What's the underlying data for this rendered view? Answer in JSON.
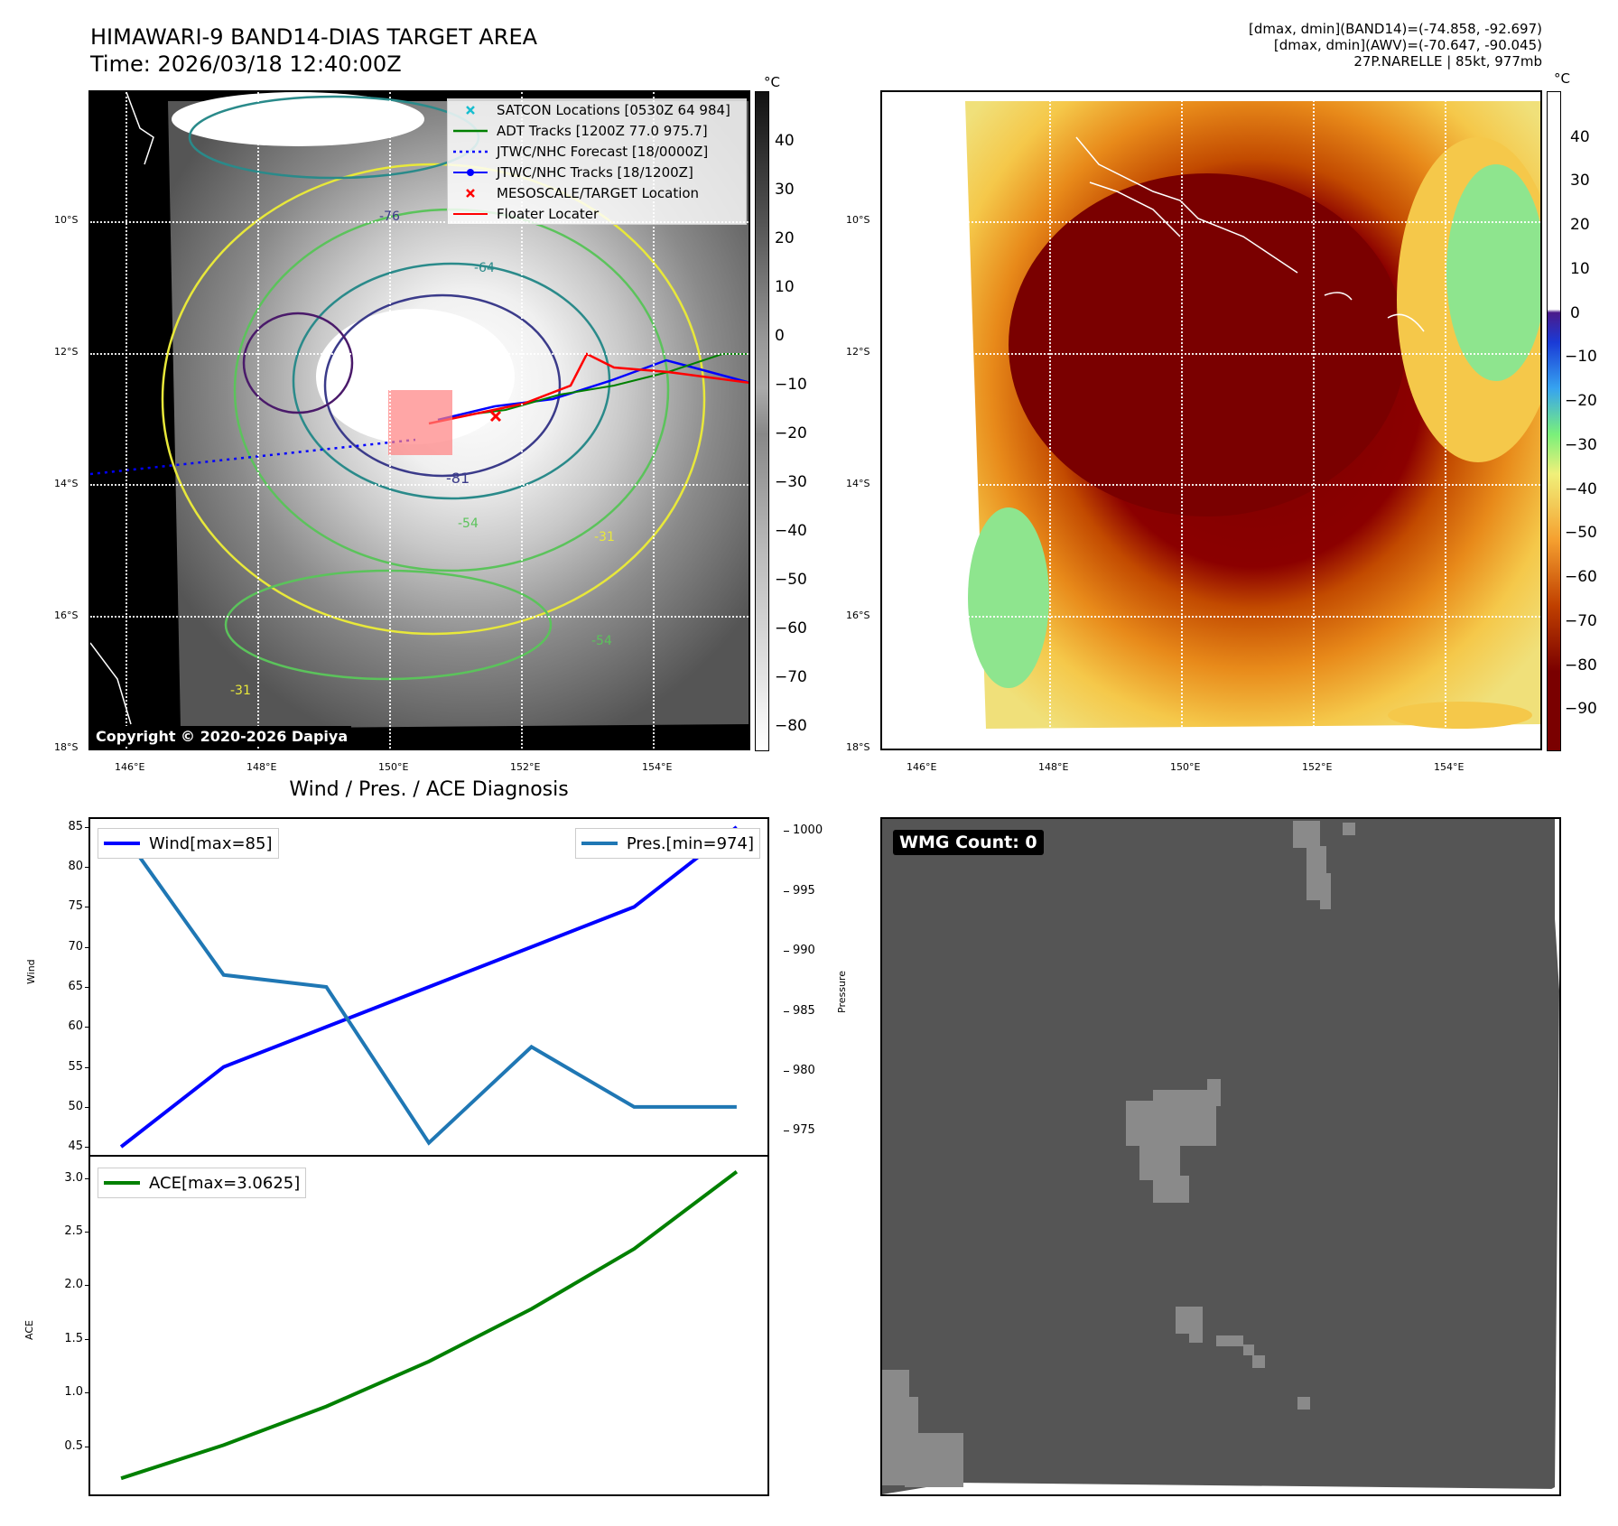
{
  "header": {
    "title_line1": "HIMAWARI-9 BAND14-DIAS TARGET AREA",
    "title_line2": "Time: 2026/03/18 12:40:00Z",
    "info_line1": "[dmax, dmin](BAND14)=(-74.858, -92.697)",
    "info_line2": "[dmax, dmin](AWV)=(-70.647, -90.045)",
    "info_line3": "27P.NARELLE | 85kt, 977mb"
  },
  "map": {
    "lon_labels": [
      "146°E",
      "148°E",
      "150°E",
      "152°E",
      "154°E"
    ],
    "lat_labels": [
      "10°S",
      "12°S",
      "14°S",
      "16°S",
      "18°S"
    ],
    "copyright": "Copyright © 2020-2026 Dapiya",
    "contour_labels": [
      "-81",
      "-64",
      "-54",
      "-31",
      "-76",
      "-54",
      "-31"
    ],
    "legend": [
      {
        "label": "SATCON Locations [0530Z 64 984]",
        "color": "#17becf",
        "icon": "x-marker"
      },
      {
        "label": "ADT Tracks [1200Z 77.0 975.7]",
        "color": "#008000",
        "icon": "solid-line"
      },
      {
        "label": "JTWC/NHC Forecast [18/0000Z]",
        "color": "#0000ff",
        "icon": "dotted-line"
      },
      {
        "label": "JTWC/NHC Tracks [18/1200Z]",
        "color": "#0000ff",
        "icon": "line-dot"
      },
      {
        "label": "MESOSCALE/TARGET Location",
        "color": "#ff0000",
        "icon": "x-marker"
      },
      {
        "label": "Floater Locater",
        "color": "#ff0000",
        "icon": "solid-line"
      }
    ]
  },
  "colorbar_left": {
    "unit": "°C",
    "ticks": [
      "40",
      "30",
      "20",
      "10",
      "0",
      "−10",
      "−20",
      "−30",
      "−40",
      "−50",
      "−60",
      "−70",
      "−80"
    ]
  },
  "colorbar_right": {
    "unit": "°C",
    "ticks": [
      "40",
      "30",
      "20",
      "10",
      "0",
      "−10",
      "−20",
      "−30",
      "−40",
      "−50",
      "−60",
      "−70",
      "−80",
      "−90"
    ]
  },
  "diagnosis": {
    "title": "Wind / Pres. / ACE Diagnosis",
    "wind_axis_label": "Wind",
    "pressure_axis_label": "Pressure",
    "ace_axis_label": "ACE",
    "wmg_label": "WMG Count: 0",
    "colors": {
      "wind": "#0000ff",
      "pressure": "#1f77b4",
      "ace": "#008000"
    }
  },
  "chart_data": [
    {
      "type": "line",
      "title": "Wind / Pres. / ACE Diagnosis",
      "x": [
        0,
        1,
        2,
        3,
        4,
        5,
        6
      ],
      "series": [
        {
          "name": "Wind[max=85]",
          "axis": "left",
          "values": [
            45,
            55,
            60,
            65,
            70,
            75,
            85
          ]
        },
        {
          "name": "Pres.[min=974]",
          "axis": "right",
          "values": [
            1000,
            988,
            987,
            974,
            982,
            977,
            977
          ]
        }
      ],
      "ylabel": "Wind",
      "ylabel_right": "Pressure",
      "yticks": [
        "45",
        "50",
        "55",
        "60",
        "65",
        "70",
        "75",
        "80",
        "85"
      ],
      "yticks_right": [
        "975",
        "980",
        "985",
        "990",
        "995",
        "1000"
      ],
      "ylim": [
        44,
        86
      ],
      "ylim_right": [
        973,
        1001
      ]
    },
    {
      "type": "line",
      "x": [
        0,
        1,
        2,
        3,
        4,
        5,
        6
      ],
      "series": [
        {
          "name": "ACE[max=3.0625]",
          "values": [
            0.2,
            0.51,
            0.87,
            1.29,
            1.78,
            2.34,
            3.06
          ]
        }
      ],
      "ylabel": "ACE",
      "yticks": [
        "0.5",
        "1.0",
        "1.5",
        "2.0",
        "2.5",
        "3.0"
      ],
      "ylim": [
        0.05,
        3.2
      ]
    }
  ]
}
